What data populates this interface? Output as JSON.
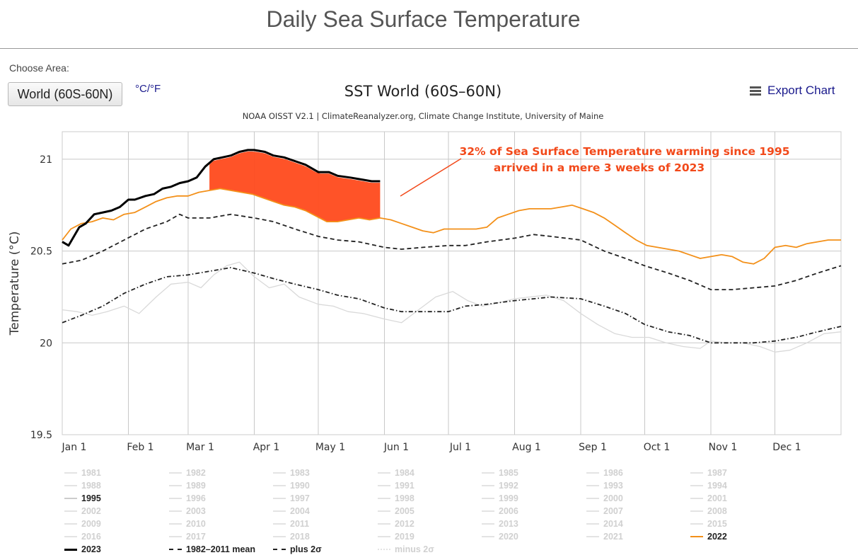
{
  "page_title": "Daily Sea Surface Temperature",
  "controls": {
    "choose_label": "Choose Area:",
    "area_value": "World (60S-60N)",
    "unit_toggle": "°C/°F",
    "export_label": "Export Chart"
  },
  "icons": {
    "export": "menu-icon"
  },
  "colors": {
    "y2023": "#000000",
    "y2022": "#f39019",
    "historic": "#d9d9d9",
    "mean": "#222222",
    "annotation": "#f2491a",
    "fill": "#ff4a1c"
  },
  "chart_data": {
    "type": "line",
    "title": "SST World (60S–60N)",
    "subtitle": "NOAA OISST V2.1 | ClimateReanalyzer.org, Climate Change Institute, University of Maine",
    "ylabel": "Temperature (°C)",
    "ylim": [
      19.5,
      21.15
    ],
    "yticks": [
      19.5,
      20,
      20.5,
      21
    ],
    "xlim": [
      1,
      366
    ],
    "month_ticks": [
      {
        "label": "Jan 1",
        "day": 1
      },
      {
        "label": "Feb 1",
        "day": 32
      },
      {
        "label": "Mar 1",
        "day": 60
      },
      {
        "label": "Apr 1",
        "day": 91
      },
      {
        "label": "May 1",
        "day": 121
      },
      {
        "label": "Jun 1",
        "day": 152
      },
      {
        "label": "Jul 1",
        "day": 182
      },
      {
        "label": "Aug 1",
        "day": 213
      },
      {
        "label": "Sep 1",
        "day": 244
      },
      {
        "label": "Oct 1",
        "day": 274
      },
      {
        "label": "Nov 1",
        "day": 305
      },
      {
        "label": "Dec 1",
        "day": 335
      }
    ],
    "grid": true,
    "series": [
      {
        "name": "2023",
        "style": "solid-thick",
        "x": [
          1,
          4,
          9,
          12,
          16,
          20,
          24,
          28,
          32,
          35,
          40,
          44,
          48,
          52,
          56,
          60,
          64,
          68,
          72,
          76,
          80,
          84,
          88,
          91,
          96,
          100,
          105,
          110,
          115,
          121,
          126,
          130,
          136,
          141,
          146,
          150
        ],
        "y": [
          20.55,
          20.53,
          20.63,
          20.65,
          20.7,
          20.71,
          20.72,
          20.74,
          20.78,
          20.78,
          20.8,
          20.81,
          20.84,
          20.85,
          20.87,
          20.88,
          20.9,
          20.96,
          21.0,
          21.01,
          21.02,
          21.04,
          21.05,
          21.05,
          21.04,
          21.02,
          21.01,
          20.99,
          20.97,
          20.93,
          20.93,
          20.91,
          20.9,
          20.89,
          20.88,
          20.88
        ]
      },
      {
        "name": "2022",
        "style": "solid",
        "x": [
          1,
          5,
          10,
          15,
          20,
          25,
          30,
          35,
          40,
          45,
          50,
          55,
          60,
          65,
          70,
          75,
          80,
          85,
          90,
          95,
          100,
          105,
          110,
          115,
          120,
          125,
          130,
          135,
          140,
          145,
          150,
          155,
          160,
          165,
          170,
          175,
          180,
          185,
          190,
          195,
          200,
          205,
          210,
          215,
          220,
          225,
          230,
          235,
          240,
          245,
          250,
          255,
          260,
          265,
          270,
          275,
          280,
          285,
          290,
          295,
          300,
          305,
          310,
          315,
          320,
          325,
          330,
          335,
          340,
          345,
          350,
          355,
          360,
          366
        ],
        "y": [
          20.56,
          20.62,
          20.65,
          20.66,
          20.68,
          20.67,
          20.7,
          20.71,
          20.74,
          20.77,
          20.79,
          20.8,
          20.8,
          20.82,
          20.83,
          20.84,
          20.83,
          20.82,
          20.81,
          20.79,
          20.77,
          20.75,
          20.74,
          20.72,
          20.69,
          20.66,
          20.66,
          20.67,
          20.68,
          20.67,
          20.68,
          20.67,
          20.65,
          20.63,
          20.61,
          20.6,
          20.62,
          20.62,
          20.62,
          20.62,
          20.63,
          20.68,
          20.7,
          20.72,
          20.73,
          20.73,
          20.73,
          20.74,
          20.75,
          20.73,
          20.71,
          20.68,
          20.64,
          20.6,
          20.56,
          20.53,
          20.52,
          20.51,
          20.5,
          20.48,
          20.46,
          20.47,
          20.48,
          20.47,
          20.44,
          20.43,
          20.46,
          20.52,
          20.53,
          20.52,
          20.54,
          20.55,
          20.56,
          20.56
        ]
      },
      {
        "name": "1982-2011 mean",
        "style": "dashed",
        "x": [
          1,
          10,
          20,
          30,
          40,
          50,
          56,
          60,
          70,
          80,
          91,
          100,
          110,
          121,
          130,
          140,
          152,
          160,
          170,
          182,
          190,
          200,
          213,
          222,
          230,
          244,
          255,
          265,
          274,
          285,
          295,
          305,
          315,
          325,
          335,
          345,
          355,
          366
        ],
        "y": [
          20.43,
          20.45,
          20.5,
          20.56,
          20.62,
          20.66,
          20.7,
          20.68,
          20.68,
          20.7,
          20.68,
          20.66,
          20.62,
          20.58,
          20.56,
          20.55,
          20.52,
          20.51,
          20.52,
          20.53,
          20.53,
          20.55,
          20.57,
          20.59,
          20.58,
          20.56,
          20.5,
          20.46,
          20.42,
          20.38,
          20.34,
          20.29,
          20.29,
          20.3,
          20.31,
          20.34,
          20.38,
          20.42
        ]
      },
      {
        "name": "plus 2σ",
        "style": "dash-dot",
        "x": [
          1,
          10,
          20,
          30,
          40,
          50,
          60,
          70,
          80,
          91,
          100,
          110,
          121,
          130,
          140,
          152,
          160,
          170,
          182,
          190,
          200,
          213,
          222,
          230,
          244,
          255,
          265,
          274,
          285,
          295,
          305,
          315,
          325,
          335,
          345,
          355,
          366
        ],
        "y": [
          20.11,
          20.15,
          20.2,
          20.27,
          20.32,
          20.36,
          20.37,
          20.39,
          20.41,
          20.38,
          20.35,
          20.32,
          20.29,
          20.26,
          20.24,
          20.19,
          20.17,
          20.17,
          20.17,
          20.2,
          20.21,
          20.23,
          20.24,
          20.25,
          20.24,
          20.2,
          20.16,
          20.1,
          20.06,
          20.04,
          20.0,
          20.0,
          20.0,
          20.01,
          20.03,
          20.06,
          20.09
        ]
      },
      {
        "name": "minus 2σ",
        "style": "dash-dot-faint",
        "x": [],
        "y": []
      },
      {
        "name": "1995",
        "style": "thin-grey",
        "x": [
          1,
          8,
          15,
          22,
          30,
          37,
          45,
          52,
          60,
          66,
          72,
          78,
          84,
          91,
          98,
          105,
          112,
          121,
          128,
          135,
          142,
          152,
          160,
          168,
          176,
          184,
          191,
          198,
          206,
          213,
          220,
          228,
          236,
          244,
          252,
          260,
          268,
          276,
          284,
          292,
          300,
          305,
          312,
          320,
          328,
          335,
          342,
          350,
          358,
          366
        ],
        "y": [
          20.18,
          20.17,
          20.15,
          20.17,
          20.2,
          20.16,
          20.25,
          20.32,
          20.33,
          20.3,
          20.37,
          20.42,
          20.44,
          20.36,
          20.3,
          20.32,
          20.25,
          20.21,
          20.2,
          20.17,
          20.16,
          20.13,
          20.11,
          20.18,
          20.25,
          20.28,
          20.23,
          20.2,
          20.22,
          20.24,
          20.25,
          20.26,
          20.23,
          20.16,
          20.1,
          20.05,
          20.03,
          20.03,
          20.0,
          19.98,
          19.97,
          20.01,
          20.0,
          20.0,
          19.98,
          19.95,
          19.96,
          20.0,
          20.05,
          20.06
        ]
      }
    ],
    "fill_area": {
      "between": [
        "2022",
        "2023"
      ],
      "x_start": 70,
      "x_end": 150
    },
    "annotations": [
      {
        "text_line1": "32%  of Sea Surface Temperature warming since 1995",
        "text_line2": "arrived in a mere 3 weeks of 2023"
      }
    ],
    "legend": {
      "placement": "bottom",
      "entries": [
        {
          "label": "1981",
          "active": false
        },
        {
          "label": "1982",
          "active": false
        },
        {
          "label": "1983",
          "active": false
        },
        {
          "label": "1984",
          "active": false
        },
        {
          "label": "1985",
          "active": false
        },
        {
          "label": "1986",
          "active": false
        },
        {
          "label": "1987",
          "active": false
        },
        {
          "label": "1988",
          "active": false
        },
        {
          "label": "1989",
          "active": false
        },
        {
          "label": "1990",
          "active": false
        },
        {
          "label": "1991",
          "active": false
        },
        {
          "label": "1992",
          "active": false
        },
        {
          "label": "1993",
          "active": false
        },
        {
          "label": "1994",
          "active": false
        },
        {
          "label": "1995",
          "active": true,
          "color": "#cccccc"
        },
        {
          "label": "1996",
          "active": false
        },
        {
          "label": "1997",
          "active": false
        },
        {
          "label": "1998",
          "active": false
        },
        {
          "label": "1999",
          "active": false
        },
        {
          "label": "2000",
          "active": false
        },
        {
          "label": "2001",
          "active": false
        },
        {
          "label": "2002",
          "active": false
        },
        {
          "label": "2003",
          "active": false
        },
        {
          "label": "2004",
          "active": false
        },
        {
          "label": "2005",
          "active": false
        },
        {
          "label": "2006",
          "active": false
        },
        {
          "label": "2007",
          "active": false
        },
        {
          "label": "2008",
          "active": false
        },
        {
          "label": "2009",
          "active": false
        },
        {
          "label": "2010",
          "active": false
        },
        {
          "label": "2011",
          "active": false
        },
        {
          "label": "2012",
          "active": false
        },
        {
          "label": "2013",
          "active": false
        },
        {
          "label": "2014",
          "active": false
        },
        {
          "label": "2015",
          "active": false
        },
        {
          "label": "2016",
          "active": false
        },
        {
          "label": "2017",
          "active": false
        },
        {
          "label": "2018",
          "active": false
        },
        {
          "label": "2019",
          "active": false
        },
        {
          "label": "2020",
          "active": false
        },
        {
          "label": "2021",
          "active": false
        },
        {
          "label": "2022",
          "active": true,
          "color": "#f39019"
        },
        {
          "label": "2023",
          "active": true,
          "color": "#000000"
        },
        {
          "label": "1982–2011 mean",
          "active": true,
          "color": "#222222"
        },
        {
          "label": "plus 2σ",
          "active": true,
          "color": "#222222"
        },
        {
          "label": "minus 2σ",
          "active": false
        }
      ]
    }
  }
}
